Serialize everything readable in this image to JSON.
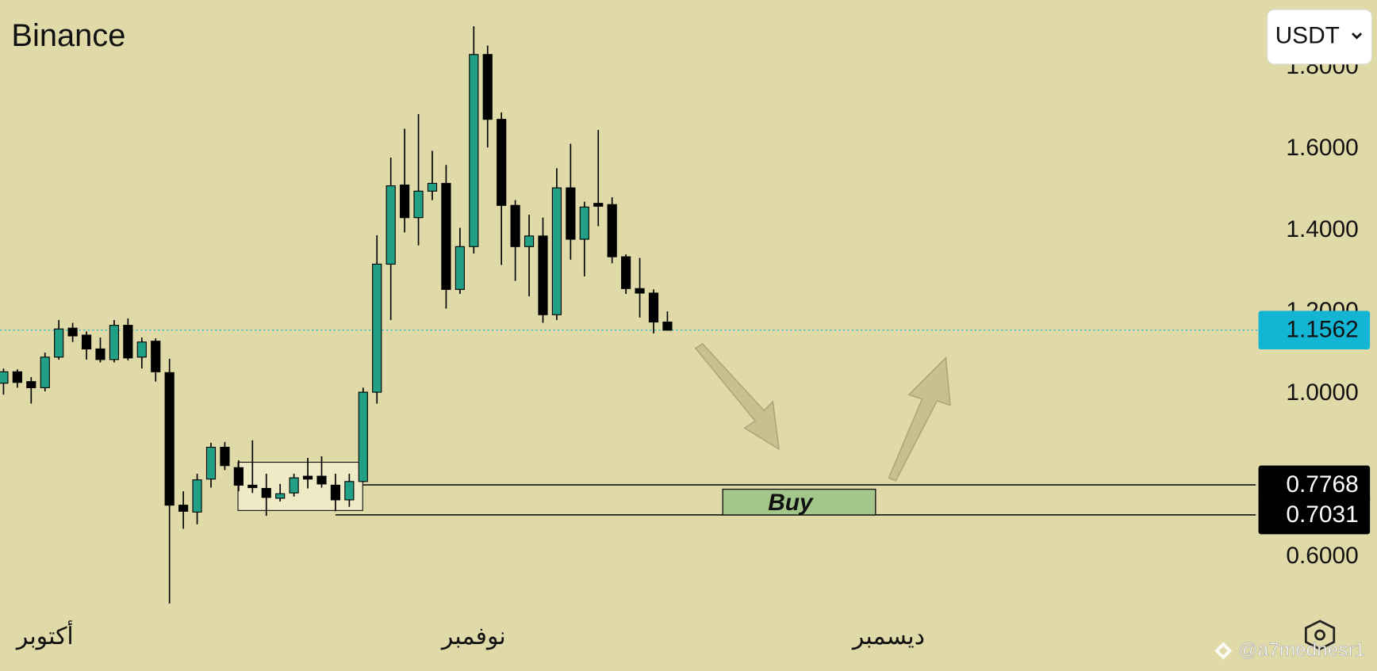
{
  "chart_data": {
    "type": "candlestick",
    "title": "Binance",
    "currency": "USDT",
    "up_color": "#22a085",
    "down_color": "#000000",
    "background": "#e0daa8",
    "grid": false,
    "categories": [
      null,
      null,
      null,
      null,
      null,
      null,
      null,
      null,
      null,
      null,
      null,
      null,
      null,
      null,
      null,
      null,
      null,
      null,
      null,
      null,
      null,
      null,
      null,
      null,
      null,
      null,
      null,
      null,
      null,
      null,
      null,
      null,
      null,
      null,
      null,
      null,
      null,
      null,
      null,
      null,
      null,
      null,
      null,
      null,
      null,
      null,
      null,
      null,
      null
    ],
    "open": [
      1.026,
      1.054,
      1.03,
      1.015,
      1.09,
      1.161,
      1.144,
      1.11,
      1.084,
      1.168,
      1.09,
      1.129,
      1.052,
      0.727,
      0.71,
      0.791,
      0.869,
      0.819,
      0.776,
      0.768,
      0.744,
      0.757,
      0.798,
      0.798,
      0.776,
      0.74,
      0.785,
      1.004,
      1.318,
      1.512,
      1.432,
      1.497,
      1.516,
      1.256,
      1.361,
      1.832,
      1.673,
      1.462,
      1.361,
      1.387,
      1.194,
      1.505,
      1.379,
      1.467,
      1.464,
      1.336,
      1.258,
      1.247,
      1.176
    ],
    "high": [
      1.062,
      1.06,
      1.041,
      1.101,
      1.181,
      1.174,
      1.153,
      1.138,
      1.181,
      1.185,
      1.138,
      1.136,
      1.086,
      0.761,
      0.804,
      0.88,
      0.882,
      0.837,
      0.886,
      0.804,
      0.779,
      0.804,
      0.843,
      0.847,
      0.804,
      0.804,
      1.015,
      1.389,
      1.579,
      1.65,
      1.686,
      1.596,
      1.561,
      1.407,
      1.901,
      1.854,
      1.69,
      1.475,
      1.439,
      1.432,
      1.553,
      1.613,
      1.471,
      1.647,
      1.482,
      1.342,
      1.333,
      1.256,
      1.202
    ],
    "low": [
      0.998,
      1.015,
      0.976,
      1.006,
      1.084,
      1.127,
      1.084,
      1.077,
      1.077,
      1.082,
      1.062,
      1.03,
      0.486,
      0.669,
      0.68,
      0.77,
      0.813,
      0.761,
      0.757,
      0.701,
      0.736,
      0.748,
      0.768,
      0.77,
      0.712,
      0.723,
      0.783,
      0.976,
      1.181,
      1.396,
      1.364,
      1.475,
      1.209,
      1.245,
      1.344,
      1.604,
      1.316,
      1.277,
      1.239,
      1.174,
      1.181,
      1.329,
      1.288,
      1.411,
      1.32,
      1.245,
      1.187,
      1.148,
      1.156
    ],
    "close": [
      1.054,
      1.028,
      1.015,
      1.09,
      1.159,
      1.142,
      1.11,
      1.084,
      1.168,
      1.088,
      1.127,
      1.054,
      0.727,
      0.712,
      0.789,
      0.869,
      0.824,
      0.776,
      0.77,
      0.746,
      0.755,
      0.794,
      0.791,
      0.779,
      0.74,
      0.785,
      1.004,
      1.318,
      1.51,
      1.432,
      1.497,
      1.516,
      1.256,
      1.361,
      1.832,
      1.673,
      1.462,
      1.361,
      1.387,
      1.194,
      1.505,
      1.379,
      1.458,
      1.46,
      1.336,
      1.258,
      1.247,
      1.176,
      1.156
    ],
    "xticks": [
      {
        "value": 3,
        "label": "أكتوبر"
      },
      {
        "value": 34,
        "label": "نوفمبر"
      },
      {
        "value": 64,
        "label": "ديسمبر"
      }
    ],
    "ylim": [
      0.3204,
      1.9656
    ],
    "yticks": [
      {
        "value": 1.8,
        "label": "1.8000"
      },
      {
        "value": 1.6,
        "label": "1.6000"
      },
      {
        "value": 1.4,
        "label": "1.4000"
      },
      {
        "value": 1.2,
        "label": "1.2000"
      },
      {
        "value": 1.0,
        "label": "1.0000"
      },
      {
        "value": 0.6,
        "label": "0.6000"
      }
    ],
    "current_price": 1.1562,
    "current_price_color": "#13b5d4",
    "levels": [
      0.7768,
      0.7031
    ],
    "annotation": "Buy",
    "watermark": "@a7mednesr1"
  }
}
